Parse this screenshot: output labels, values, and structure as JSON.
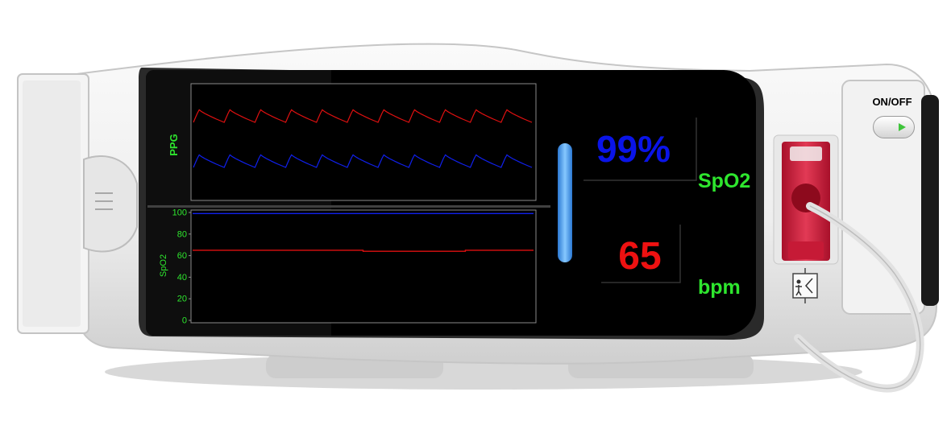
{
  "device": {
    "power_label": "ON/OFF",
    "accent_color": "#2ee62e"
  },
  "ppg_panel": {
    "title": "PPG"
  },
  "trend_panel": {
    "ylabel": "SpO2"
  },
  "readings": {
    "spo2_value": "99%",
    "spo2_label": "SpO2",
    "spo2_color": "#0a14e8",
    "hr_value": "65",
    "hr_label": "bpm",
    "hr_color": "#ee1111"
  },
  "chart_data": [
    {
      "type": "line",
      "title": "PPG",
      "xlabel": "",
      "ylabel": "",
      "grid": false,
      "note_waveforms": "two pulse waveforms, 11 beats each",
      "series": [
        {
          "color": "#e01010",
          "beats": 11
        },
        {
          "color": "#1020ee",
          "beats": 11
        }
      ]
    },
    {
      "type": "line",
      "title": "",
      "xlabel": "",
      "ylabel": "SpO2",
      "ylim": [
        0,
        100
      ],
      "yticks": [
        "0",
        "20",
        "40",
        "60",
        "80",
        "100"
      ],
      "grid": false,
      "x": [
        0,
        10,
        20,
        30,
        40,
        50,
        60,
        70,
        80,
        90,
        100
      ],
      "series": [
        {
          "color": "#1020ee",
          "values": [
            99,
            99,
            99,
            99,
            99,
            99,
            99,
            99,
            99,
            99,
            99
          ]
        },
        {
          "color": "#e01010",
          "values": [
            65,
            65,
            65,
            65,
            65,
            64,
            64,
            64,
            65,
            65,
            65
          ]
        }
      ]
    }
  ]
}
